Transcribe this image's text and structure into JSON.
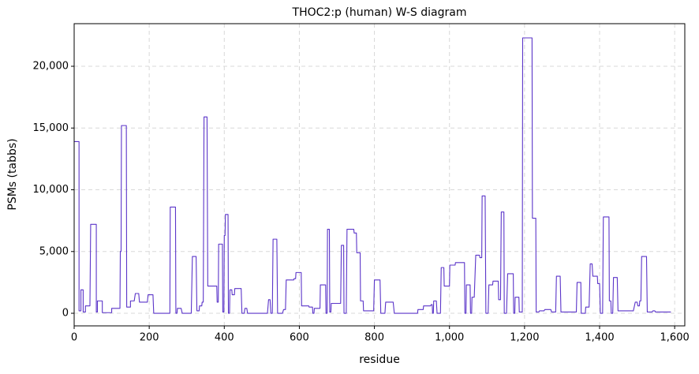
{
  "chart_data": {
    "type": "line",
    "title": "THOC2:p (human) W-S diagram",
    "x_label": "residue",
    "y_label": "PSMs (tabbs)",
    "color": "#5b35c9",
    "grid": true,
    "xlim": [
      0,
      1627
    ],
    "ylim": [
      -1020,
      23450
    ],
    "xticks": [
      0,
      200,
      400,
      600,
      800,
      {
        "value": 1000,
        "label": "1,000"
      },
      {
        "value": 1200,
        "label": "1,200"
      },
      {
        "value": 1400,
        "label": "1,400"
      },
      {
        "value": 1600,
        "label": "1,600"
      }
    ],
    "yticks": [
      0,
      {
        "value": 5000,
        "label": "5,000"
      },
      {
        "value": 10000,
        "label": "10,000"
      },
      {
        "value": 15000,
        "label": "15,000"
      },
      {
        "value": 20000,
        "label": "20,000"
      }
    ],
    "x": [
      0,
      13,
      13,
      18,
      18,
      24,
      24,
      30,
      30,
      42,
      44,
      59,
      59,
      62,
      62,
      75,
      75,
      100,
      100,
      122,
      123,
      125,
      126,
      139,
      140,
      150,
      150,
      160,
      163,
      172,
      174,
      195,
      197,
      210,
      212,
      255,
      256,
      270,
      271,
      274,
      275,
      285,
      288,
      312,
      315,
      325,
      327,
      333,
      334,
      340,
      341,
      344,
      346,
      354,
      356,
      380,
      381,
      384,
      385,
      395,
      396,
      399,
      400,
      402,
      403,
      410,
      411,
      414,
      415,
      420,
      421,
      427,
      428,
      445,
      447,
      453,
      455,
      460,
      462,
      515,
      518,
      522,
      524,
      528,
      530,
      540,
      542,
      555,
      558,
      563,
      565,
      585,
      586,
      590,
      591,
      605,
      606,
      625,
      626,
      635,
      636,
      639,
      640,
      655,
      656,
      670,
      671,
      674,
      675,
      680,
      681,
      684,
      685,
      710,
      712,
      718,
      719,
      725,
      727,
      745,
      746,
      752,
      753,
      762,
      763,
      770,
      771,
      798,
      800,
      815,
      817,
      828,
      830,
      850,
      853,
      915,
      916,
      930,
      931,
      950,
      951,
      954,
      955,
      957,
      958,
      965,
      967,
      976,
      978,
      985,
      986,
      1000,
      1001,
      1015,
      1016,
      1040,
      1041,
      1044,
      1045,
      1055,
      1056,
      1059,
      1060,
      1066,
      1070,
      1080,
      1081,
      1086,
      1087,
      1095,
      1097,
      1103,
      1105,
      1115,
      1116,
      1130,
      1131,
      1136,
      1138,
      1145,
      1146,
      1152,
      1155,
      1170,
      1171,
      1174,
      1175,
      1185,
      1186,
      1194,
      1195,
      1220,
      1221,
      1230,
      1231,
      1238,
      1240,
      1252,
      1254,
      1270,
      1272,
      1283,
      1285,
      1295,
      1297,
      1338,
      1340,
      1350,
      1351,
      1362,
      1363,
      1372,
      1375,
      1380,
      1382,
      1394,
      1395,
      1400,
      1402,
      1408,
      1410,
      1425,
      1426,
      1430,
      1431,
      1435,
      1437,
      1447,
      1449,
      1490,
      1495,
      1500,
      1502,
      1506,
      1507,
      1510,
      1512,
      1525,
      1527,
      1540,
      1542,
      1547,
      1549,
      1590
    ],
    "values": [
      13900,
      13900,
      200,
      200,
      1900,
      1900,
      100,
      100,
      600,
      600,
      7200,
      7200,
      100,
      100,
      1000,
      1000,
      50,
      50,
      400,
      400,
      5000,
      5000,
      15200,
      15200,
      500,
      500,
      1000,
      1000,
      1600,
      1600,
      900,
      900,
      1500,
      1500,
      0,
      0,
      8600,
      8600,
      0,
      0,
      400,
      400,
      0,
      0,
      4600,
      4600,
      200,
      200,
      600,
      600,
      900,
      900,
      15900,
      15900,
      2200,
      2200,
      900,
      900,
      5600,
      5600,
      100,
      100,
      6300,
      6300,
      8000,
      8000,
      0,
      0,
      1900,
      1900,
      1500,
      1500,
      2000,
      2000,
      0,
      0,
      400,
      400,
      0,
      0,
      1100,
      1100,
      0,
      0,
      6000,
      6000,
      0,
      0,
      300,
      300,
      2700,
      2700,
      2800,
      2800,
      3300,
      3300,
      600,
      600,
      500,
      500,
      0,
      0,
      400,
      400,
      2300,
      2300,
      0,
      0,
      6800,
      6800,
      100,
      100,
      800,
      800,
      5500,
      5500,
      0,
      0,
      6800,
      6800,
      6500,
      6500,
      4900,
      4900,
      1000,
      1000,
      200,
      200,
      2700,
      2700,
      0,
      0,
      900,
      900,
      0,
      0,
      300,
      300,
      600,
      600,
      700,
      700,
      0,
      0,
      1000,
      1000,
      0,
      0,
      3700,
      3700,
      2200,
      2200,
      3900,
      3900,
      4100,
      4100,
      0,
      0,
      2300,
      2300,
      0,
      0,
      1300,
      1300,
      4700,
      4700,
      4500,
      4500,
      9500,
      9500,
      0,
      0,
      2300,
      2300,
      2600,
      2600,
      1100,
      1100,
      8200,
      8200,
      0,
      0,
      3200,
      3200,
      0,
      0,
      1300,
      1300,
      100,
      100,
      22300,
      22300,
      7700,
      7700,
      100,
      100,
      200,
      200,
      300,
      300,
      100,
      100,
      3000,
      3000,
      100,
      100,
      2500,
      2500,
      0,
      0,
      500,
      500,
      4000,
      4000,
      3000,
      3000,
      2400,
      2400,
      0,
      0,
      7800,
      7800,
      1000,
      1000,
      0,
      0,
      2900,
      2900,
      200,
      200,
      900,
      900,
      600,
      600,
      1000,
      1000,
      4600,
      4600,
      100,
      100,
      200,
      200,
      100,
      100
    ]
  }
}
